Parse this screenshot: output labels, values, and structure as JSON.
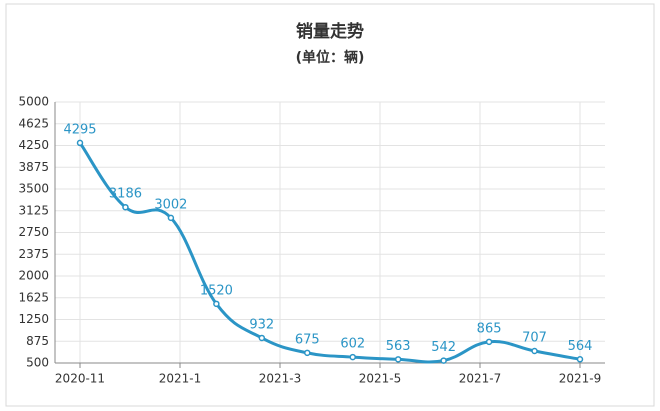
{
  "chart_data": {
    "type": "line",
    "title": "销量走势",
    "subtitle": "(单位：辆)",
    "categories": [
      null,
      null,
      null,
      null,
      null,
      null,
      null,
      null,
      null,
      null,
      null,
      null
    ],
    "series": [
      {
        "name": null,
        "color": "#2b95c6",
        "values": [
          4295,
          3186,
          3002,
          1520,
          932,
          675,
          602,
          563,
          542,
          865,
          707,
          564
        ]
      }
    ],
    "xlim": [
      -0.55,
      11.55
    ],
    "xticks": [
      {
        "value": 0,
        "label": "2020-11"
      },
      {
        "value": 2.2,
        "label": "2021-1"
      },
      {
        "value": 4.4,
        "label": "2021-3"
      },
      {
        "value": 6.6,
        "label": "2021-5"
      },
      {
        "value": 8.8,
        "label": "2021-7"
      },
      {
        "value": 11,
        "label": "2021-9"
      }
    ],
    "ylim": [
      500,
      5000
    ],
    "yticks": [
      500,
      875,
      1250,
      1625,
      2000,
      2375,
      2750,
      3125,
      3500,
      3875,
      4250,
      4625,
      5000
    ],
    "grid": true
  }
}
